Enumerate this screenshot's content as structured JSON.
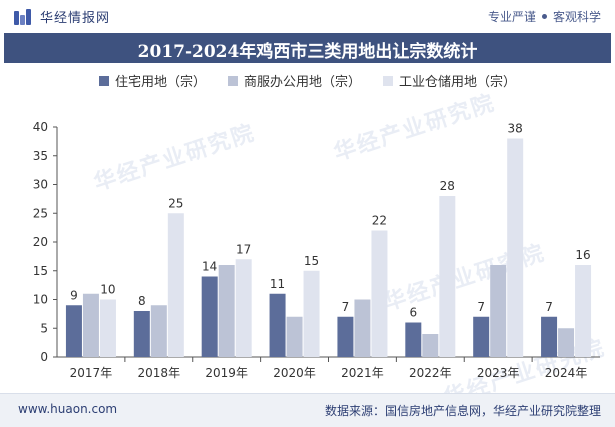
{
  "header": {
    "brand": "华经情报网",
    "slogan_left": "专业严谨",
    "slogan_right": "客观科学"
  },
  "watermark": "华经产业研究院",
  "footer": {
    "website": "www.huaon.com",
    "source": "数据来源：国信房地产信息网，华经产业研究院整理"
  },
  "colors": {
    "title_bg": "#3e527f",
    "series": [
      "#5c6d9a",
      "#bcc3d6",
      "#dfe3ee"
    ]
  },
  "chart_data": {
    "type": "bar",
    "title": "2017-2024年鸡西市三类用地出让宗数统计",
    "categories": [
      "2017年",
      "2018年",
      "2019年",
      "2020年",
      "2021年",
      "2022年",
      "2023年",
      "2024年"
    ],
    "series": [
      {
        "name": "住宅用地（宗）",
        "values": [
          9,
          8,
          14,
          11,
          7,
          6,
          7,
          7
        ],
        "labeled": true
      },
      {
        "name": "商服办公用地（宗）",
        "values": [
          11,
          9,
          16,
          7,
          10,
          4,
          16,
          5
        ],
        "labeled": false
      },
      {
        "name": "工业仓储用地（宗）",
        "values": [
          10,
          25,
          17,
          15,
          22,
          28,
          38,
          16
        ],
        "labeled": true
      }
    ],
    "ylim": [
      0,
      40
    ],
    "yticks": [
      0,
      5,
      10,
      15,
      20,
      25,
      30,
      35,
      40
    ],
    "xlabel": "",
    "ylabel": "",
    "legend": "top",
    "grid": false
  }
}
